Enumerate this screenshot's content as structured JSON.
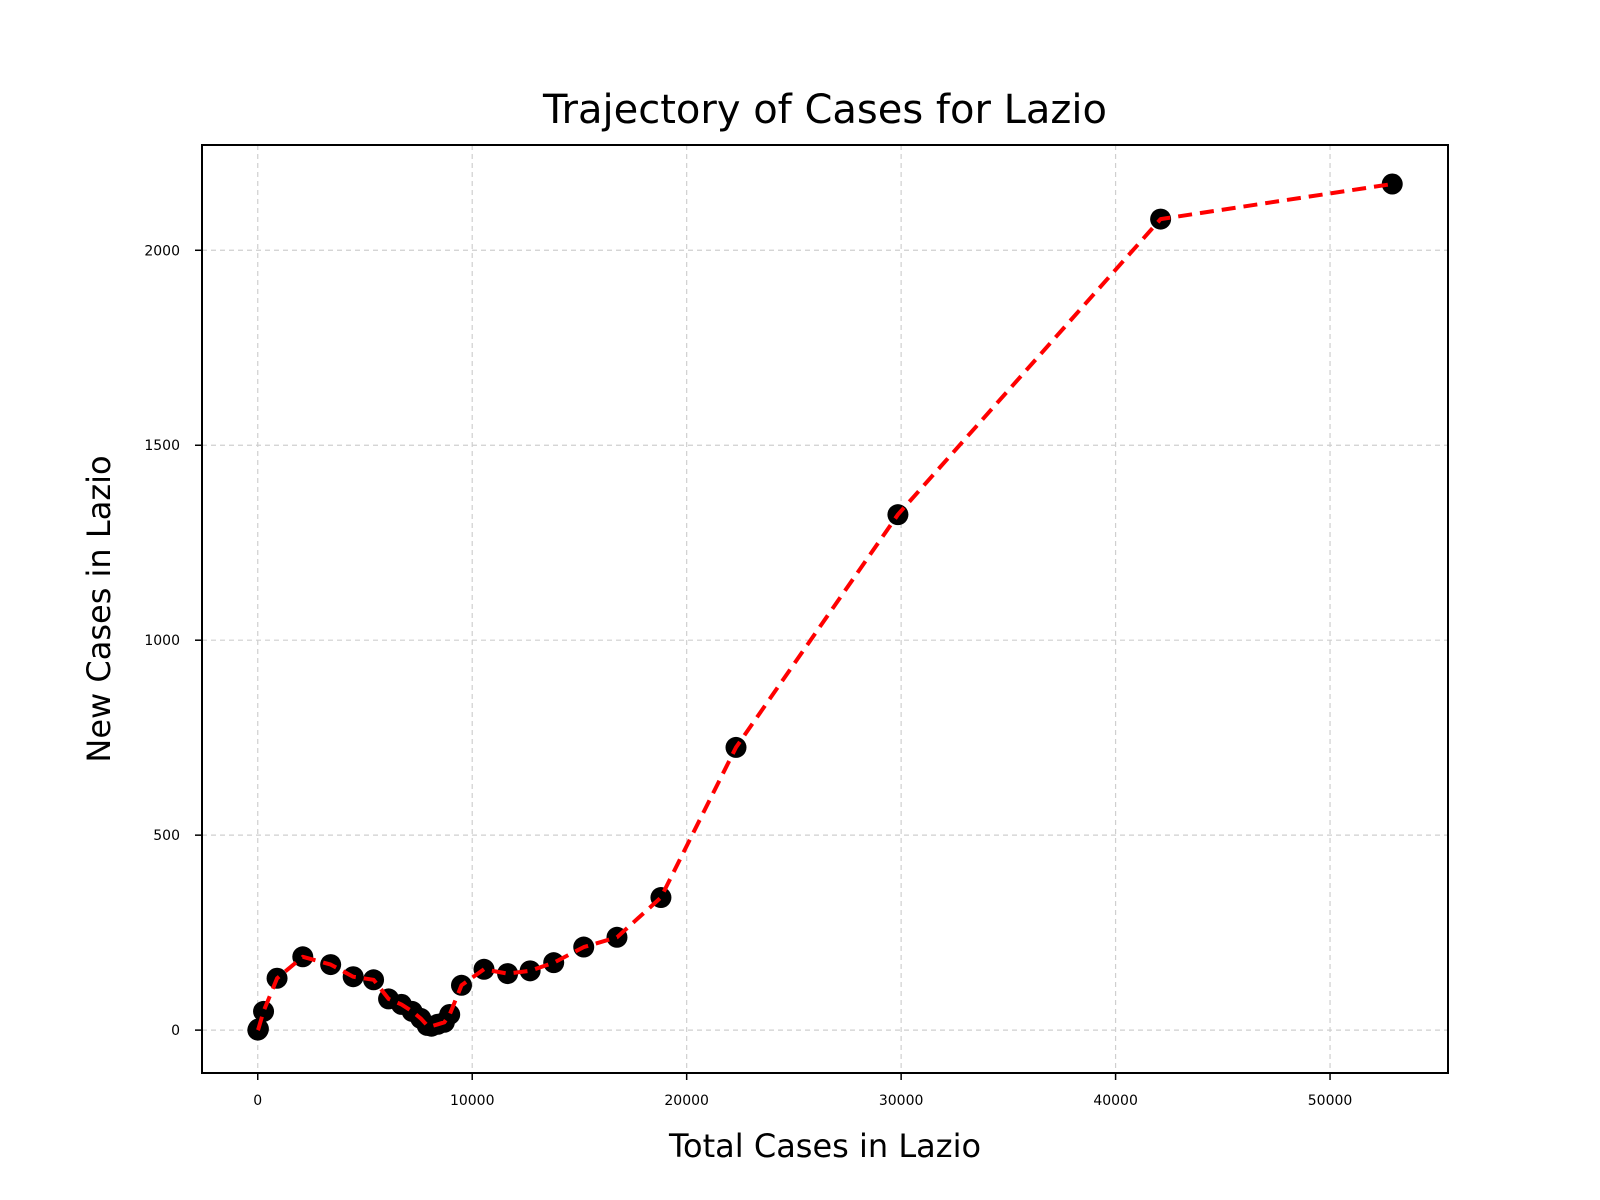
{
  "chart_data": {
    "type": "line",
    "title": "Trajectory of Cases for Lazio",
    "xlabel": "Total Cases in Lazio",
    "ylabel": "New Cases in Lazio",
    "xlim": [
      -2600,
      55500
    ],
    "ylim": [
      -110,
      2270
    ],
    "xticks": [
      0,
      10000,
      20000,
      30000,
      40000,
      50000
    ],
    "yticks": [
      0,
      500,
      1000,
      1500,
      2000
    ],
    "grid": true,
    "line_color": "#ff0000",
    "line_style": "dashed",
    "marker_color": "#000000",
    "series": [
      {
        "x": [
          3,
          30,
          270,
          900,
          2100,
          3400,
          4450,
          5400,
          6100,
          6700,
          7200,
          7600,
          7900,
          8100,
          8400,
          8700,
          8950,
          9500,
          10550,
          11650,
          12700,
          13800,
          15200,
          16750,
          18800,
          22300,
          29850,
          42100,
          52900
        ],
        "y": [
          0,
          3,
          48,
          133,
          188,
          168,
          137,
          129,
          80,
          66,
          48,
          30,
          12,
          10,
          15,
          20,
          40,
          115,
          156,
          145,
          152,
          173,
          213,
          238,
          340,
          725,
          1322,
          2080,
          2170
        ]
      }
    ]
  }
}
